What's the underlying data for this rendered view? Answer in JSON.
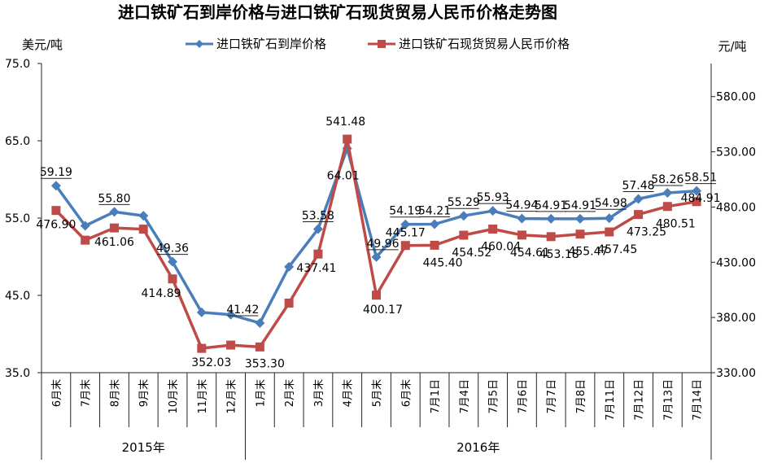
{
  "chart_data": {
    "type": "line",
    "title": "进口铁矿石到岸价格与进口铁矿石现货贸易人民币价格走势图",
    "y_left_unit": "美元/吨",
    "y_right_unit": "元/吨",
    "y_left_ticks": [
      "75.0",
      "65.0",
      "55.0",
      "45.0",
      "35.0"
    ],
    "y_right_ticks": [
      "580.00",
      "530.00",
      "480.00",
      "430.00",
      "380.00",
      "330.00"
    ],
    "ylim_left": [
      35,
      75
    ],
    "ylim_right": [
      330,
      610
    ],
    "categories": [
      "6月末",
      "7月末",
      "8月末",
      "9月末",
      "10月末",
      "11月末",
      "12月末",
      "1月末",
      "2月末",
      "3月末",
      "4月末",
      "5月末",
      "6月末",
      "7月1日",
      "7月4日",
      "7月5日",
      "7月6日",
      "7月7日",
      "7月8日",
      "7月11日",
      "7月12日",
      "7月13日",
      "7月14日"
    ],
    "year_groups": [
      {
        "label": "2015年",
        "start": 0,
        "end": 6
      },
      {
        "label": "2016年",
        "start": 7,
        "end": 22
      }
    ],
    "legend_position": "top-center",
    "series": [
      {
        "name": "进口铁矿石到岸价格",
        "axis": "left",
        "color": "#4a7ebb",
        "marker": "diamond",
        "values": [
          59.19,
          54.0,
          55.8,
          55.3,
          49.36,
          42.8,
          42.5,
          41.42,
          48.7,
          53.58,
          64.01,
          49.96,
          54.19,
          54.21,
          55.29,
          55.93,
          54.94,
          54.91,
          54.91,
          54.98,
          57.48,
          58.26,
          58.51
        ],
        "labels": [
          "59.19",
          null,
          "55.80",
          null,
          "49.36",
          null,
          null,
          "41.42",
          null,
          "53.58",
          "64.01",
          "49.96",
          "54.19",
          "54.21",
          "55.29",
          "55.93",
          "54.94",
          "54.91",
          "54.91",
          "54.98",
          "57.48",
          "58.26",
          "58.51"
        ]
      },
      {
        "name": "进口铁矿石现货贸易人民币价格",
        "axis": "right",
        "color": "#be4b48",
        "marker": "square",
        "values": [
          476.9,
          450.0,
          461.06,
          460.0,
          414.89,
          352.03,
          355.0,
          353.3,
          393.0,
          437.41,
          541.48,
          400.17,
          445.17,
          445.4,
          454.52,
          460.04,
          454.61,
          453.18,
          455.47,
          457.45,
          473.25,
          480.51,
          484.91
        ],
        "labels": [
          "476.90",
          null,
          "461.06",
          null,
          "414.89",
          "352.03",
          null,
          "353.30",
          null,
          "437.41",
          "541.48",
          "400.17",
          "445.17",
          "445.40",
          "454.52",
          "460.04",
          "454.61",
          "453.18",
          "455.47",
          "457.45",
          "473.25",
          "480.51",
          "484.91"
        ]
      }
    ]
  }
}
